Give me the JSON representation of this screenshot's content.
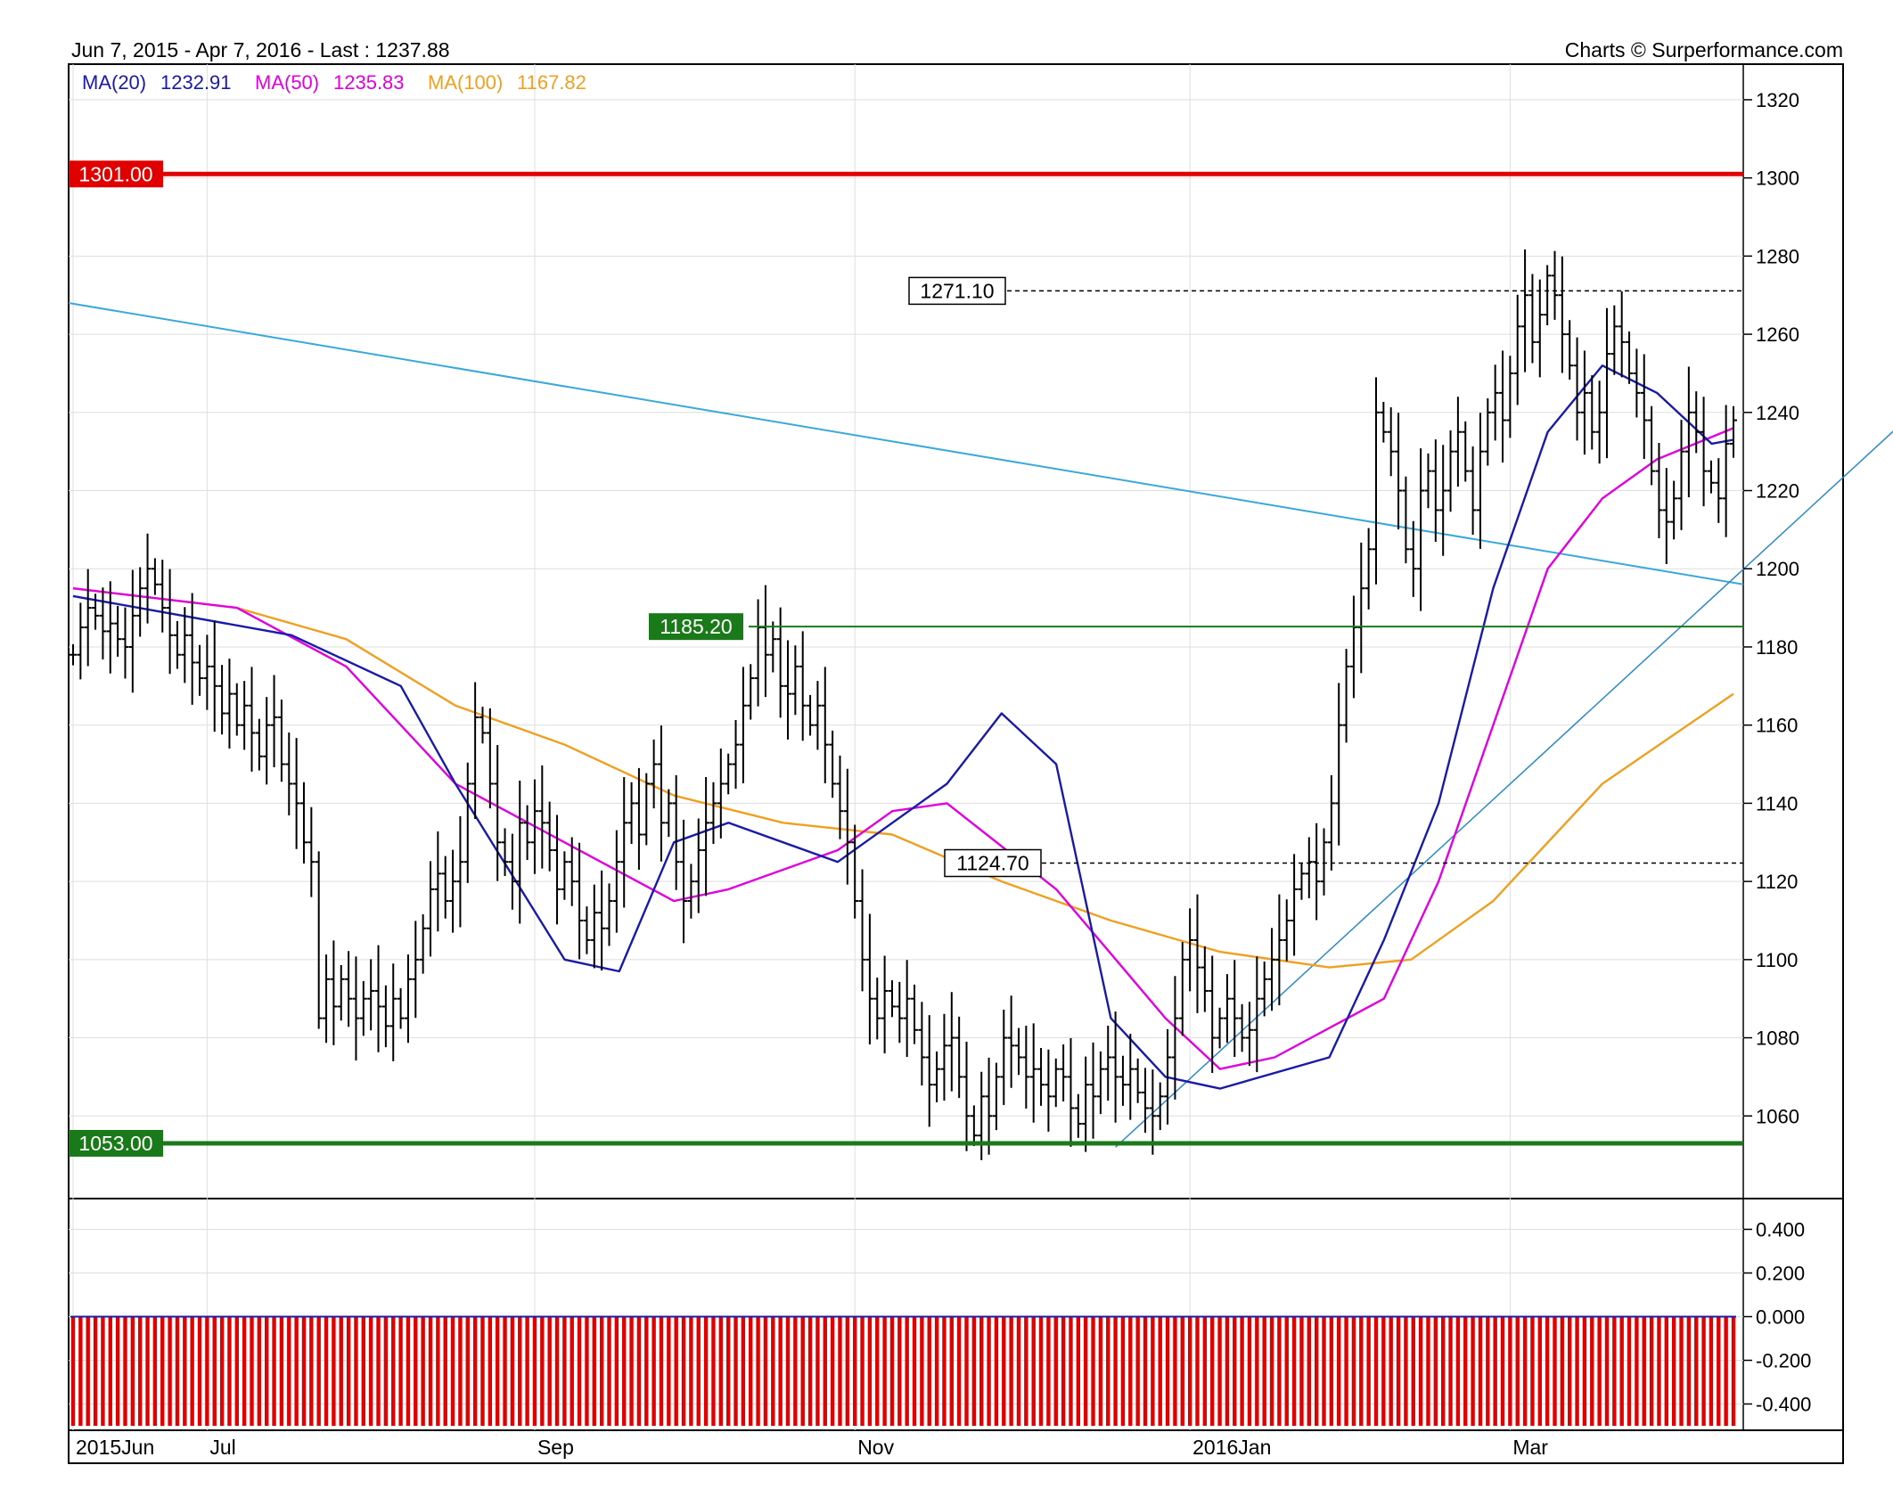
{
  "header": {
    "range_label": "Jun 7, 2015 - Apr 7, 2016 - Last : 1237.88",
    "credit": "Charts © Surperformance.com"
  },
  "legend": [
    {
      "label": "MA(20)",
      "value": "1232.91",
      "color": "#1a1aa8"
    },
    {
      "label": "MA(50)",
      "value": "1235.83",
      "color": "#e000e0"
    },
    {
      "label": "MA(100)",
      "value": "1167.82",
      "color": "#f0a020"
    }
  ],
  "colors": {
    "price_bar": "#000000",
    "resistance": "#e00000",
    "support": "#1a7a1a",
    "trendline": "#3aa8d8",
    "channel": "#2a8ac8",
    "grid": "#dedede",
    "volume_bar": "#e00000"
  },
  "chart_data": [
    {
      "type": "ohlc",
      "x_axis": {
        "ticks": [
          "2015Jun",
          "Jul",
          "Sep",
          "Nov",
          "2016Jan",
          "Mar"
        ]
      },
      "y_axis": {
        "ticks": [
          1060,
          1080,
          1100,
          1120,
          1140,
          1160,
          1180,
          1200,
          1220,
          1240,
          1260,
          1280,
          1300,
          1320
        ],
        "range": [
          1040,
          1325
        ],
        "position": "right"
      },
      "grid": true,
      "levels": [
        {
          "label": "1301.00",
          "value": 1301.0,
          "color": "#e00000",
          "style": "solid-thick"
        },
        {
          "label": "1185.20",
          "value": 1185.2,
          "color": "#1a7a1a",
          "style": "solid"
        },
        {
          "label": "1053.00",
          "value": 1053.0,
          "color": "#1a7a1a",
          "style": "solid-thick"
        },
        {
          "label": "1271.10",
          "value": 1271.1,
          "color": "#000000",
          "style": "dashed"
        },
        {
          "label": "1124.70",
          "value": 1124.7,
          "color": "#000000",
          "style": "dashed"
        }
      ],
      "closes": [
        1178,
        1185,
        1190,
        1188,
        1184,
        1186,
        1182,
        1180,
        1188,
        1195,
        1200,
        1196,
        1190,
        1183,
        1178,
        1183,
        1176,
        1172,
        1175,
        1170,
        1163,
        1168,
        1160,
        1165,
        1158,
        1152,
        1160,
        1162,
        1150,
        1145,
        1140,
        1130,
        1125,
        1085,
        1095,
        1088,
        1095,
        1090,
        1085,
        1090,
        1092,
        1088,
        1083,
        1090,
        1085,
        1095,
        1100,
        1108,
        1118,
        1122,
        1115,
        1120,
        1125,
        1145,
        1162,
        1158,
        1145,
        1130,
        1125,
        1120,
        1135,
        1130,
        1138,
        1135,
        1128,
        1118,
        1125,
        1120,
        1110,
        1105,
        1112,
        1108,
        1115,
        1125,
        1135,
        1140,
        1132,
        1145,
        1150,
        1135,
        1140,
        1125,
        1115,
        1120,
        1128,
        1135,
        1140,
        1145,
        1150,
        1155,
        1165,
        1172,
        1185,
        1178,
        1182,
        1170,
        1168,
        1175,
        1165,
        1160,
        1165,
        1155,
        1145,
        1138,
        1130,
        1115,
        1100,
        1090,
        1085,
        1092,
        1088,
        1085,
        1090,
        1082,
        1075,
        1068,
        1072,
        1078,
        1080,
        1070,
        1060,
        1055,
        1065,
        1060,
        1070,
        1080,
        1078,
        1075,
        1070,
        1072,
        1068,
        1065,
        1072,
        1070,
        1062,
        1058,
        1068,
        1065,
        1072,
        1075,
        1070,
        1068,
        1072,
        1066,
        1062,
        1060,
        1065,
        1075,
        1085,
        1100,
        1105,
        1098,
        1092,
        1080,
        1085,
        1090,
        1085,
        1080,
        1082,
        1090,
        1095,
        1100,
        1105,
        1110,
        1118,
        1122,
        1125,
        1120,
        1130,
        1140,
        1160,
        1175,
        1185,
        1195,
        1205,
        1240,
        1235,
        1230,
        1220,
        1205,
        1200,
        1220,
        1225,
        1215,
        1220,
        1230,
        1235,
        1225,
        1215,
        1230,
        1240,
        1245,
        1238,
        1250,
        1262,
        1270,
        1258,
        1265,
        1275,
        1270,
        1260,
        1252,
        1240,
        1245,
        1235,
        1240,
        1255,
        1262,
        1258,
        1250,
        1245,
        1238,
        1225,
        1215,
        1212,
        1218,
        1230,
        1240,
        1235,
        1225,
        1222,
        1218,
        1232,
        1238
      ],
      "ma20_points": [
        [
          0,
          1193
        ],
        [
          40,
          1183
        ],
        [
          60,
          1170
        ],
        [
          70,
          1145
        ],
        [
          90,
          1100
        ],
        [
          100,
          1097
        ],
        [
          110,
          1130
        ],
        [
          120,
          1135
        ],
        [
          140,
          1125
        ],
        [
          160,
          1145
        ],
        [
          170,
          1163
        ],
        [
          180,
          1150
        ],
        [
          190,
          1085
        ],
        [
          200,
          1070
        ],
        [
          210,
          1067
        ],
        [
          230,
          1075
        ],
        [
          240,
          1105
        ],
        [
          250,
          1140
        ],
        [
          260,
          1195
        ],
        [
          270,
          1235
        ],
        [
          280,
          1252
        ],
        [
          290,
          1245
        ],
        [
          300,
          1232
        ],
        [
          304,
          1233
        ]
      ],
      "ma50_points": [
        [
          0,
          1195
        ],
        [
          30,
          1190
        ],
        [
          50,
          1175
        ],
        [
          70,
          1145
        ],
        [
          90,
          1130
        ],
        [
          110,
          1115
        ],
        [
          120,
          1118
        ],
        [
          140,
          1128
        ],
        [
          150,
          1138
        ],
        [
          160,
          1140
        ],
        [
          180,
          1118
        ],
        [
          200,
          1085
        ],
        [
          210,
          1072
        ],
        [
          220,
          1075
        ],
        [
          240,
          1090
        ],
        [
          250,
          1120
        ],
        [
          260,
          1160
        ],
        [
          270,
          1200
        ],
        [
          280,
          1218
        ],
        [
          290,
          1228
        ],
        [
          304,
          1236
        ]
      ],
      "ma100_points": [
        [
          0,
          1195
        ],
        [
          30,
          1190
        ],
        [
          50,
          1182
        ],
        [
          70,
          1165
        ],
        [
          90,
          1155
        ],
        [
          110,
          1142
        ],
        [
          130,
          1135
        ],
        [
          150,
          1132
        ],
        [
          170,
          1120
        ],
        [
          190,
          1110
        ],
        [
          210,
          1102
        ],
        [
          230,
          1098
        ],
        [
          245,
          1100
        ],
        [
          260,
          1115
        ],
        [
          280,
          1145
        ],
        [
          304,
          1168
        ]
      ]
    },
    {
      "type": "bar",
      "y_axis": {
        "ticks": [
          "0.400",
          "0.200",
          "0.000",
          "-0.200",
          "-0.400"
        ],
        "range": [
          -0.5,
          0.5
        ],
        "position": "right"
      },
      "value_per_bar": -0.5
    }
  ]
}
